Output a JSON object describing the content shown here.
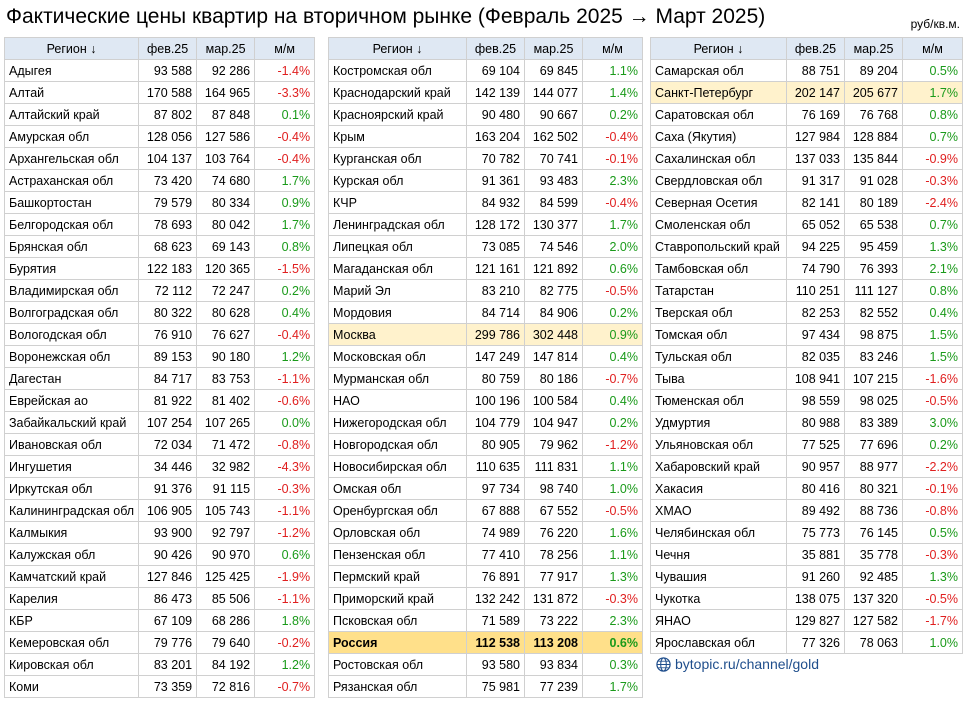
{
  "title": "Фактические цены квартир на вторичном рынке (Февраль 2025 → Март 2025)",
  "unit": "руб/кв.м.",
  "footer": {
    "site": "bytopic.ru/channel/gold",
    "icon": "globe-icon"
  },
  "colors": {
    "positive": "#1a9a1a",
    "negative": "#e01f1f",
    "highlight": "#fff2cc",
    "total": "#ffe08a",
    "header": "#dfe8f3"
  },
  "headers": {
    "region": "Регион ↓",
    "feb": "фев.25",
    "mar": "мар.25",
    "mm": "м/м"
  },
  "columns": [
    {
      "rows": [
        {
          "region": "Адыгея",
          "feb": "93 588",
          "mar": "92 286",
          "mm": "-1.4%"
        },
        {
          "region": "Алтай",
          "feb": "170 588",
          "mar": "164 965",
          "mm": "-3.3%"
        },
        {
          "region": "Алтайский край",
          "feb": "87 802",
          "mar": "87 848",
          "mm": "0.1%"
        },
        {
          "region": "Амурская обл",
          "feb": "128 056",
          "mar": "127 586",
          "mm": "-0.4%"
        },
        {
          "region": "Архангельская обл",
          "feb": "104 137",
          "mar": "103 764",
          "mm": "-0.4%"
        },
        {
          "region": "Астраханская обл",
          "feb": "73 420",
          "mar": "74 680",
          "mm": "1.7%"
        },
        {
          "region": "Башкортостан",
          "feb": "79 579",
          "mar": "80 334",
          "mm": "0.9%"
        },
        {
          "region": "Белгородская обл",
          "feb": "78 693",
          "mar": "80 042",
          "mm": "1.7%"
        },
        {
          "region": "Брянская обл",
          "feb": "68 623",
          "mar": "69 143",
          "mm": "0.8%"
        },
        {
          "region": "Бурятия",
          "feb": "122 183",
          "mar": "120 365",
          "mm": "-1.5%"
        },
        {
          "region": "Владимирская обл",
          "feb": "72 112",
          "mar": "72 247",
          "mm": "0.2%"
        },
        {
          "region": "Волгоградская обл",
          "feb": "80 322",
          "mar": "80 628",
          "mm": "0.4%"
        },
        {
          "region": "Вологодская обл",
          "feb": "76 910",
          "mar": "76 627",
          "mm": "-0.4%"
        },
        {
          "region": "Воронежская обл",
          "feb": "89 153",
          "mar": "90 180",
          "mm": "1.2%"
        },
        {
          "region": "Дагестан",
          "feb": "84 717",
          "mar": "83 753",
          "mm": "-1.1%"
        },
        {
          "region": "Еврейская ао",
          "feb": "81 922",
          "mar": "81 402",
          "mm": "-0.6%"
        },
        {
          "region": "Забайкальский край",
          "feb": "107 254",
          "mar": "107 265",
          "mm": "0.0%"
        },
        {
          "region": "Ивановская обл",
          "feb": "72 034",
          "mar": "71 472",
          "mm": "-0.8%"
        },
        {
          "region": "Ингушетия",
          "feb": "34 446",
          "mar": "32 982",
          "mm": "-4.3%"
        },
        {
          "region": "Иркутская обл",
          "feb": "91 376",
          "mar": "91 115",
          "mm": "-0.3%"
        },
        {
          "region": "Калининградская обл",
          "feb": "106 905",
          "mar": "105 743",
          "mm": "-1.1%"
        },
        {
          "region": "Калмыкия",
          "feb": "93 900",
          "mar": "92 797",
          "mm": "-1.2%"
        },
        {
          "region": "Калужская обл",
          "feb": "90 426",
          "mar": "90 970",
          "mm": "0.6%"
        },
        {
          "region": "Камчатский край",
          "feb": "127 846",
          "mar": "125 425",
          "mm": "-1.9%"
        },
        {
          "region": "Карелия",
          "feb": "86 473",
          "mar": "85 506",
          "mm": "-1.1%"
        },
        {
          "region": "КБР",
          "feb": "67 109",
          "mar": "68 286",
          "mm": "1.8%"
        },
        {
          "region": "Кемеровская обл",
          "feb": "79 776",
          "mar": "79 640",
          "mm": "-0.2%"
        },
        {
          "region": "Кировская обл",
          "feb": "83 201",
          "mar": "84 192",
          "mm": "1.2%"
        },
        {
          "region": "Коми",
          "feb": "73 359",
          "mar": "72 816",
          "mm": "-0.7%"
        }
      ]
    },
    {
      "rows": [
        {
          "region": "Костромская обл",
          "feb": "69 104",
          "mar": "69 845",
          "mm": "1.1%"
        },
        {
          "region": "Краснодарский край",
          "feb": "142 139",
          "mar": "144 077",
          "mm": "1.4%"
        },
        {
          "region": "Красноярский край",
          "feb": "90 480",
          "mar": "90 667",
          "mm": "0.2%"
        },
        {
          "region": "Крым",
          "feb": "163 204",
          "mar": "162 502",
          "mm": "-0.4%"
        },
        {
          "region": "Курганская обл",
          "feb": "70 782",
          "mar": "70 741",
          "mm": "-0.1%"
        },
        {
          "region": "Курская обл",
          "feb": "91 361",
          "mar": "93 483",
          "mm": "2.3%"
        },
        {
          "region": "КЧР",
          "feb": "84 932",
          "mar": "84 599",
          "mm": "-0.4%"
        },
        {
          "region": "Ленинградская обл",
          "feb": "128 172",
          "mar": "130 377",
          "mm": "1.7%"
        },
        {
          "region": "Липецкая обл",
          "feb": "73 085",
          "mar": "74 546",
          "mm": "2.0%"
        },
        {
          "region": "Магаданская обл",
          "feb": "121 161",
          "mar": "121 892",
          "mm": "0.6%"
        },
        {
          "region": "Марий Эл",
          "feb": "83 210",
          "mar": "82 775",
          "mm": "-0.5%"
        },
        {
          "region": "Мордовия",
          "feb": "84 714",
          "mar": "84 906",
          "mm": "0.2%"
        },
        {
          "region": "Москва",
          "feb": "299 786",
          "mar": "302 448",
          "mm": "0.9%",
          "style": "hl"
        },
        {
          "region": "Московская обл",
          "feb": "147 249",
          "mar": "147 814",
          "mm": "0.4%"
        },
        {
          "region": "Мурманская обл",
          "feb": "80 759",
          "mar": "80 186",
          "mm": "-0.7%"
        },
        {
          "region": "НАО",
          "feb": "100 196",
          "mar": "100 584",
          "mm": "0.4%"
        },
        {
          "region": "Нижегородская обл",
          "feb": "104 779",
          "mar": "104 947",
          "mm": "0.2%"
        },
        {
          "region": "Новгородская обл",
          "feb": "80 905",
          "mar": "79 962",
          "mm": "-1.2%"
        },
        {
          "region": "Новосибирская обл",
          "feb": "110 635",
          "mar": "111 831",
          "mm": "1.1%"
        },
        {
          "region": "Омская обл",
          "feb": "97 734",
          "mar": "98 740",
          "mm": "1.0%"
        },
        {
          "region": "Оренбургская обл",
          "feb": "67 888",
          "mar": "67 552",
          "mm": "-0.5%"
        },
        {
          "region": "Орловская обл",
          "feb": "74 989",
          "mar": "76 220",
          "mm": "1.6%"
        },
        {
          "region": "Пензенская обл",
          "feb": "77 410",
          "mar": "78 256",
          "mm": "1.1%"
        },
        {
          "region": "Пермский край",
          "feb": "76 891",
          "mar": "77 917",
          "mm": "1.3%"
        },
        {
          "region": "Приморский край",
          "feb": "132 242",
          "mar": "131 872",
          "mm": "-0.3%"
        },
        {
          "region": "Псковская обл",
          "feb": "71 589",
          "mar": "73 222",
          "mm": "2.3%"
        },
        {
          "region": "Россия",
          "feb": "112 538",
          "mar": "113 208",
          "mm": "0.6%",
          "style": "bold"
        },
        {
          "region": "Ростовская обл",
          "feb": "93 580",
          "mar": "93 834",
          "mm": "0.3%"
        },
        {
          "region": "Рязанская обл",
          "feb": "75 981",
          "mar": "77 239",
          "mm": "1.7%"
        }
      ]
    },
    {
      "rows": [
        {
          "region": "Самарская обл",
          "feb": "88 751",
          "mar": "89 204",
          "mm": "0.5%"
        },
        {
          "region": "Санкт-Петербург",
          "feb": "202 147",
          "mar": "205 677",
          "mm": "1.7%",
          "style": "hl"
        },
        {
          "region": "Саратовская обл",
          "feb": "76 169",
          "mar": "76 768",
          "mm": "0.8%"
        },
        {
          "region": "Саха (Якутия)",
          "feb": "127 984",
          "mar": "128 884",
          "mm": "0.7%"
        },
        {
          "region": "Сахалинская обл",
          "feb": "137 033",
          "mar": "135 844",
          "mm": "-0.9%"
        },
        {
          "region": "Свердловская обл",
          "feb": "91 317",
          "mar": "91 028",
          "mm": "-0.3%"
        },
        {
          "region": "Северная Осетия",
          "feb": "82 141",
          "mar": "80 189",
          "mm": "-2.4%"
        },
        {
          "region": "Смоленская обл",
          "feb": "65 052",
          "mar": "65 538",
          "mm": "0.7%"
        },
        {
          "region": "Ставропольский край",
          "feb": "94 225",
          "mar": "95 459",
          "mm": "1.3%"
        },
        {
          "region": "Тамбовская обл",
          "feb": "74 790",
          "mar": "76 393",
          "mm": "2.1%"
        },
        {
          "region": "Татарстан",
          "feb": "110 251",
          "mar": "111 127",
          "mm": "0.8%"
        },
        {
          "region": "Тверская обл",
          "feb": "82 253",
          "mar": "82 552",
          "mm": "0.4%"
        },
        {
          "region": "Томская обл",
          "feb": "97 434",
          "mar": "98 875",
          "mm": "1.5%"
        },
        {
          "region": "Тульская обл",
          "feb": "82 035",
          "mar": "83 246",
          "mm": "1.5%"
        },
        {
          "region": "Тыва",
          "feb": "108 941",
          "mar": "107 215",
          "mm": "-1.6%"
        },
        {
          "region": "Тюменская обл",
          "feb": "98 559",
          "mar": "98 025",
          "mm": "-0.5%"
        },
        {
          "region": "Удмуртия",
          "feb": "80 988",
          "mar": "83 389",
          "mm": "3.0%"
        },
        {
          "region": "Ульяновская обл",
          "feb": "77 525",
          "mar": "77 696",
          "mm": "0.2%"
        },
        {
          "region": "Хабаровский край",
          "feb": "90 957",
          "mar": "88 977",
          "mm": "-2.2%"
        },
        {
          "region": "Хакасия",
          "feb": "80 416",
          "mar": "80 321",
          "mm": "-0.1%"
        },
        {
          "region": "ХМАО",
          "feb": "89 492",
          "mar": "88 736",
          "mm": "-0.8%"
        },
        {
          "region": "Челябинская обл",
          "feb": "75 773",
          "mar": "76 145",
          "mm": "0.5%"
        },
        {
          "region": "Чечня",
          "feb": "35 881",
          "mar": "35 778",
          "mm": "-0.3%"
        },
        {
          "region": "Чувашия",
          "feb": "91 260",
          "mar": "92 485",
          "mm": "1.3%"
        },
        {
          "region": "Чукотка",
          "feb": "138 075",
          "mar": "137 320",
          "mm": "-0.5%"
        },
        {
          "region": "ЯНАО",
          "feb": "129 827",
          "mar": "127 582",
          "mm": "-1.7%"
        },
        {
          "region": "Ярославская обл",
          "feb": "77 326",
          "mar": "78 063",
          "mm": "1.0%"
        }
      ]
    }
  ]
}
